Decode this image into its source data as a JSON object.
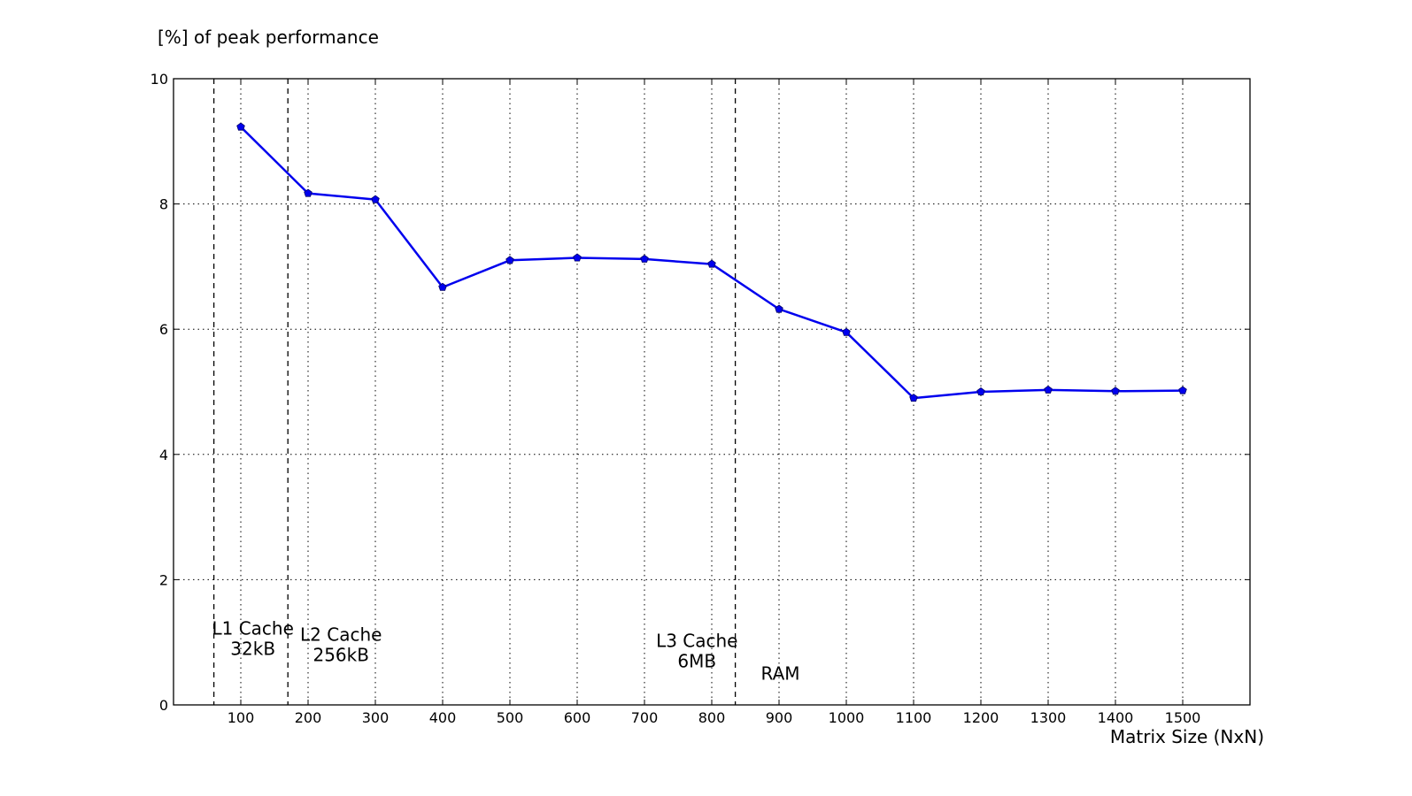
{
  "chart_data": {
    "type": "line",
    "ylabel": "[%] of peak performance",
    "xlabel": "Matrix Size (NxN)",
    "xlim": [
      0,
      1600
    ],
    "ylim": [
      0,
      10
    ],
    "xticks": [
      100,
      200,
      300,
      400,
      500,
      600,
      700,
      800,
      900,
      1000,
      1100,
      1200,
      1300,
      1400,
      1500
    ],
    "yticks": [
      0,
      2,
      4,
      6,
      8,
      10
    ],
    "grid": true,
    "series": [
      {
        "color": "#0000ee",
        "marker": "pentagon",
        "x": [
          100,
          200,
          300,
          400,
          500,
          600,
          700,
          800,
          900,
          1000,
          1100,
          1200,
          1300,
          1400,
          1500
        ],
        "y": [
          9.23,
          8.17,
          8.07,
          6.67,
          7.1,
          7.14,
          7.12,
          7.04,
          6.32,
          5.95,
          4.9,
          5.0,
          5.03,
          5.01,
          5.02
        ]
      }
    ],
    "boundaries": [
      {
        "x": 60,
        "style": "dashed"
      },
      {
        "x": 170,
        "style": "dashed"
      },
      {
        "x": 835,
        "style": "dashed"
      }
    ],
    "annotations": [
      {
        "lines": [
          "L1 Cache",
          "32kB"
        ],
        "x": 118,
        "y": 0.8
      },
      {
        "lines": [
          "L2 Cache",
          "256kB"
        ],
        "x": 249,
        "y": 0.7
      },
      {
        "lines": [
          "L3 Cache",
          "6MB"
        ],
        "x": 778,
        "y": 0.6
      },
      {
        "lines": [
          "RAM"
        ],
        "x": 902,
        "y": 0.4
      }
    ]
  }
}
